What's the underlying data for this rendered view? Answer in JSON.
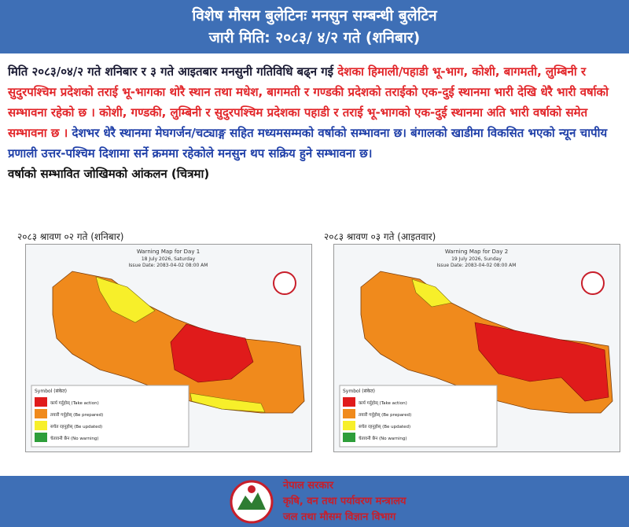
{
  "header": {
    "title": "विशेष मौसम बुलेटिनः मनसुन सम्बन्धी बुलेटिन",
    "subtitle": "जारी मिति: २०८३/ ४/२ गते (शनिबार)"
  },
  "bulletin": {
    "segments": [
      "मिति २०८३/०४/२ गते शनिबार र ३ गते आइतबार मनसुनी गतिविधि बढ्न गई ",
      "देशका हिमाली/पहाडी भू-भाग, कोशी, बागमती, लुम्बिनी र सुदुरपश्चिम प्रदेशको तराई भू-भागका थोरै स्थान तथा मधेश, बागमती र गण्डकी प्रदेशको तराईको एक-दुई स्थानमा भारी देखि धेरै भारी वर्षाको सम्भावना रहेको छ । कोशी, गण्डकी, लुम्बिनी र सुदुरपश्चिम प्रदेशका पहाडी र तराई भू-भागको एक-दुई स्थानमा अति भारी वर्षाको समेत सम्भावना छ ।",
      " देशभर धेरै स्थानमा मेघगर्जन/चट्याङ्ग सहित मध्यमसम्मको वर्षाको सम्भावना छ। बंगालको खाडीमा विकसित भएको न्यून चापीय प्रणाली उत्तर-पश्चिम दिशामा सर्ने क्रममा रहेकोले मनसुन थप सक्रिय हुने सम्भावना छ।"
    ],
    "subheading": "वर्षाको सम्भावित जोखिमको आंकलन (चित्रमा)"
  },
  "maps": [
    {
      "caption": "२०८३ श्रावण ०२ गते (शनिबार)",
      "title": "Warning Map for Day 1",
      "date": "18 July 2026, Saturday",
      "issue": "Issue Date: 2083-04-02 08:00 AM"
    },
    {
      "caption": "२०८३ श्रावण ०३ गते (आइतवार)",
      "title": "Warning Map for Day 2",
      "date": "19 July 2026, Sunday",
      "issue": "Issue Date: 2083-04-02 08:00 AM"
    }
  ],
  "legend": {
    "title": "Symbol (संकेत)",
    "items": [
      "कार्य गर्नुहोस् (Take action)",
      "तयारी गर्नुहोस् (Be prepared)",
      "सचेत रहनुहोस् (Be updated)",
      "चेतावनी छैन (No warning)"
    ]
  },
  "footer": {
    "lines": [
      "नेपाल सरकार",
      "कृषि, वन तथा पर्यावरण मन्त्रालय",
      "जल तथा मौसम विज्ञान विभाग"
    ]
  }
}
